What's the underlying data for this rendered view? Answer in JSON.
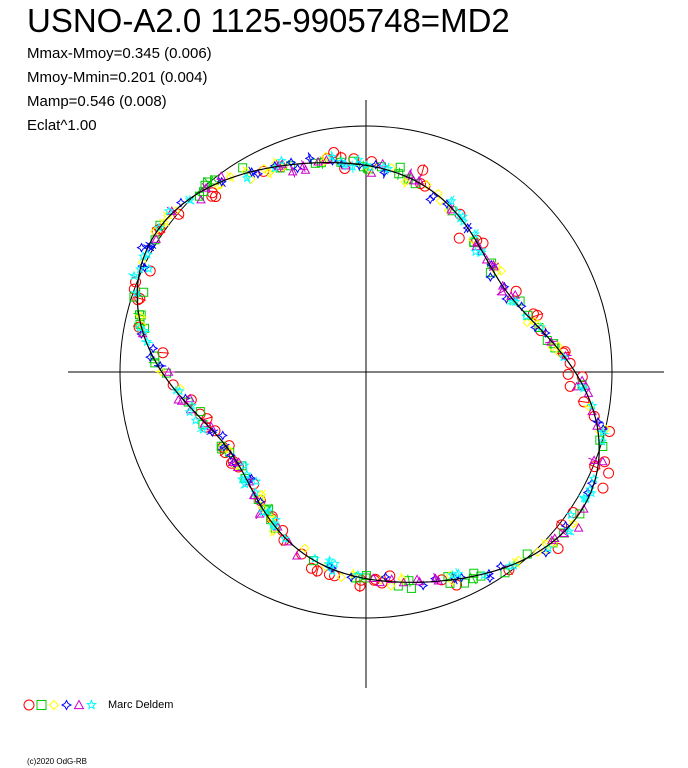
{
  "title": "USNO-A2.0 1125-9905748=MD2",
  "stats": [
    "Mmax-Mmoy=0.345 (0.006)",
    "Mmoy-Mmin=0.201 (0.004)",
    "Mamp=0.546 (0.008)",
    "Eclat^1.00"
  ],
  "legend": {
    "label": "Marc Deldem",
    "symbols": [
      {
        "shape": "circle",
        "color": "#ff0000"
      },
      {
        "shape": "square",
        "color": "#00cc00"
      },
      {
        "shape": "diamond",
        "color": "#ffff00"
      },
      {
        "shape": "star4",
        "color": "#0000ff"
      },
      {
        "shape": "triangle",
        "color": "#cc00cc"
      },
      {
        "shape": "star5",
        "color": "#00ffff"
      }
    ]
  },
  "copyright": "(c)2020 OdG-RB",
  "chart_data": {
    "type": "scatter",
    "projection": "polar",
    "grid": false,
    "legend_position": "bottom-left",
    "reference_circle": true,
    "mean_curve_harmonics": [
      {
        "k": 2,
        "a": 0.0,
        "b": -0.17
      },
      {
        "k": 4,
        "a": 0.0,
        "b": 0.05
      },
      {
        "k": 1,
        "a": 0.0,
        "b": 0.01
      }
    ],
    "series": [
      {
        "symbol": "circle",
        "color": "#ff0000",
        "count": 80
      },
      {
        "symbol": "square",
        "color": "#00cc00",
        "count": 75
      },
      {
        "symbol": "diamond",
        "color": "#ffff00",
        "count": 70
      },
      {
        "symbol": "star4",
        "color": "#0000ff",
        "count": 60
      },
      {
        "symbol": "triangle",
        "color": "#cc00cc",
        "count": 70
      },
      {
        "symbol": "star5",
        "color": "#00ffff",
        "count": 80
      }
    ]
  }
}
